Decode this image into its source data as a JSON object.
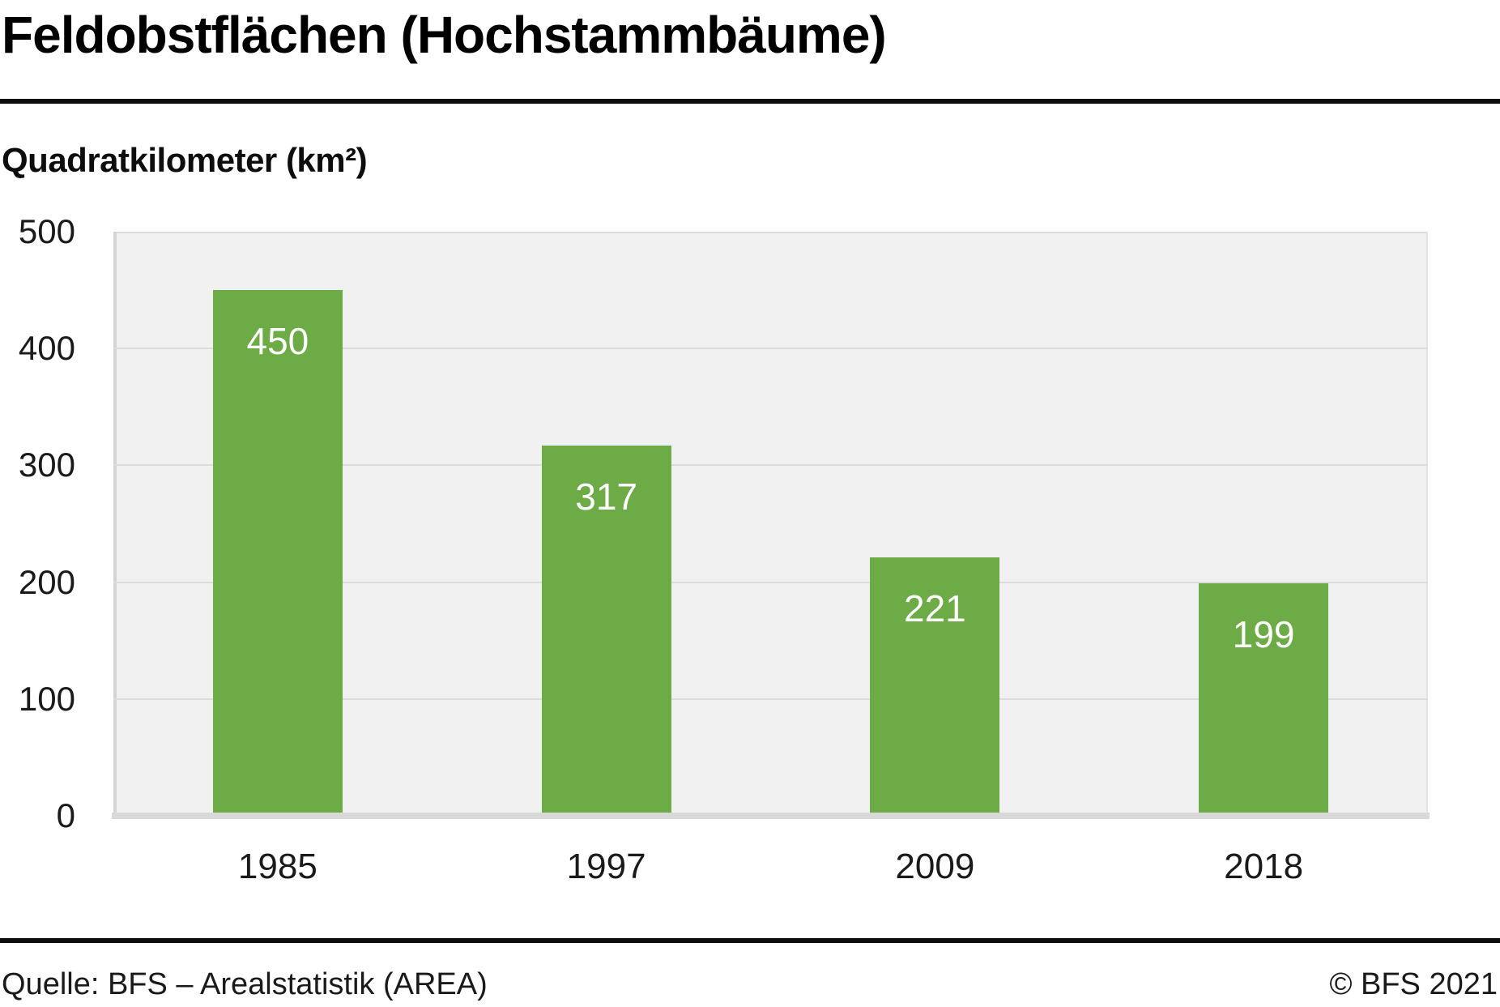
{
  "title": "Feldobstflächen (Hochstammbäume)",
  "subtitle": "Quadratkilometer (km²)",
  "chart_data": {
    "type": "bar",
    "categories": [
      "1985",
      "1997",
      "2009",
      "2018"
    ],
    "values": [
      450,
      317,
      221,
      199
    ],
    "title": "Feldobstflächen (Hochstammbäume)",
    "xlabel": "",
    "ylabel": "Quadratkilometer (km²)",
    "ylim": [
      0,
      500
    ],
    "yticks": [
      0,
      100,
      200,
      300,
      400,
      500
    ],
    "grid": true,
    "legend": "none",
    "bar_color": "#6dab47",
    "value_label_color": "#ffffff",
    "plot_background": "#f1f1f1",
    "gridline_color": "#dcdcdc"
  },
  "footer": {
    "source": "Quelle: BFS – Arealstatistik (AREA)",
    "copyright": "© BFS 2021"
  }
}
